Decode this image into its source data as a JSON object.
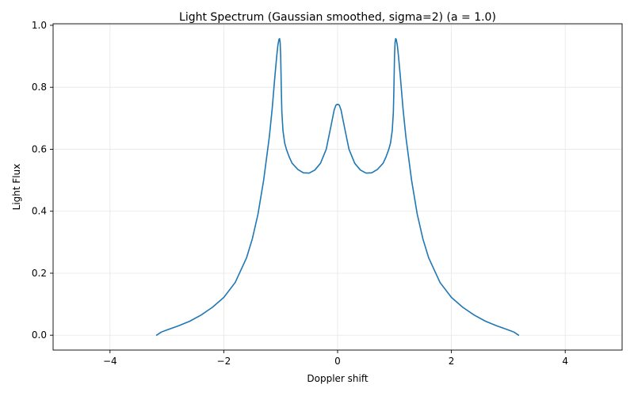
{
  "chart_data": {
    "type": "line",
    "title": "Light Spectrum (Gaussian smoothed, sigma=2) (a = 1.0)",
    "xlabel": "Doppler shift",
    "ylabel": "Light Flux",
    "xlim": [
      -5,
      5
    ],
    "ylim": [
      -0.048,
      1.005
    ],
    "xticks": [
      -4,
      -2,
      0,
      2,
      4
    ],
    "xtick_labels": [
      "−4",
      "−2",
      "0",
      "2",
      "4"
    ],
    "yticks": [
      0.0,
      0.2,
      0.4,
      0.6,
      0.8,
      1.0
    ],
    "ytick_labels": [
      "0.0",
      "0.2",
      "0.4",
      "0.6",
      "0.8",
      "1.0"
    ],
    "grid": true,
    "series": [
      {
        "color": "#1f77b4",
        "x": [
          -3.18,
          -3.1,
          -3.0,
          -2.8,
          -2.6,
          -2.4,
          -2.2,
          -2.0,
          -1.8,
          -1.6,
          -1.5,
          -1.4,
          -1.3,
          -1.2,
          -1.15,
          -1.1,
          -1.07,
          -1.05,
          -1.03,
          -1.02,
          -1.01,
          -1.0,
          -0.99,
          -0.98,
          -0.96,
          -0.93,
          -0.9,
          -0.85,
          -0.8,
          -0.7,
          -0.6,
          -0.5,
          -0.4,
          -0.3,
          -0.2,
          -0.15,
          -0.1,
          -0.06,
          -0.03,
          -0.01,
          0.0,
          0.01,
          0.03,
          0.06,
          0.1,
          0.15,
          0.2,
          0.3,
          0.4,
          0.5,
          0.6,
          0.7,
          0.8,
          0.85,
          0.9,
          0.93,
          0.96,
          0.98,
          0.99,
          1.0,
          1.01,
          1.02,
          1.03,
          1.05,
          1.07,
          1.1,
          1.15,
          1.2,
          1.3,
          1.4,
          1.5,
          1.6,
          1.8,
          2.0,
          2.2,
          2.4,
          2.6,
          2.8,
          3.0,
          3.1,
          3.18
        ],
        "y": [
          0.0,
          0.01,
          0.017,
          0.03,
          0.045,
          0.065,
          0.09,
          0.122,
          0.17,
          0.25,
          0.31,
          0.39,
          0.5,
          0.64,
          0.73,
          0.84,
          0.9,
          0.935,
          0.955,
          0.957,
          0.945,
          0.9,
          0.8,
          0.72,
          0.66,
          0.62,
          0.6,
          0.575,
          0.555,
          0.535,
          0.524,
          0.523,
          0.533,
          0.555,
          0.6,
          0.645,
          0.69,
          0.727,
          0.742,
          0.745,
          0.744,
          0.745,
          0.742,
          0.727,
          0.69,
          0.645,
          0.6,
          0.555,
          0.533,
          0.523,
          0.524,
          0.535,
          0.555,
          0.575,
          0.6,
          0.62,
          0.66,
          0.72,
          0.8,
          0.9,
          0.945,
          0.957,
          0.955,
          0.935,
          0.9,
          0.84,
          0.73,
          0.64,
          0.5,
          0.39,
          0.31,
          0.25,
          0.17,
          0.122,
          0.09,
          0.065,
          0.045,
          0.03,
          0.017,
          0.01,
          0.0
        ]
      }
    ]
  }
}
